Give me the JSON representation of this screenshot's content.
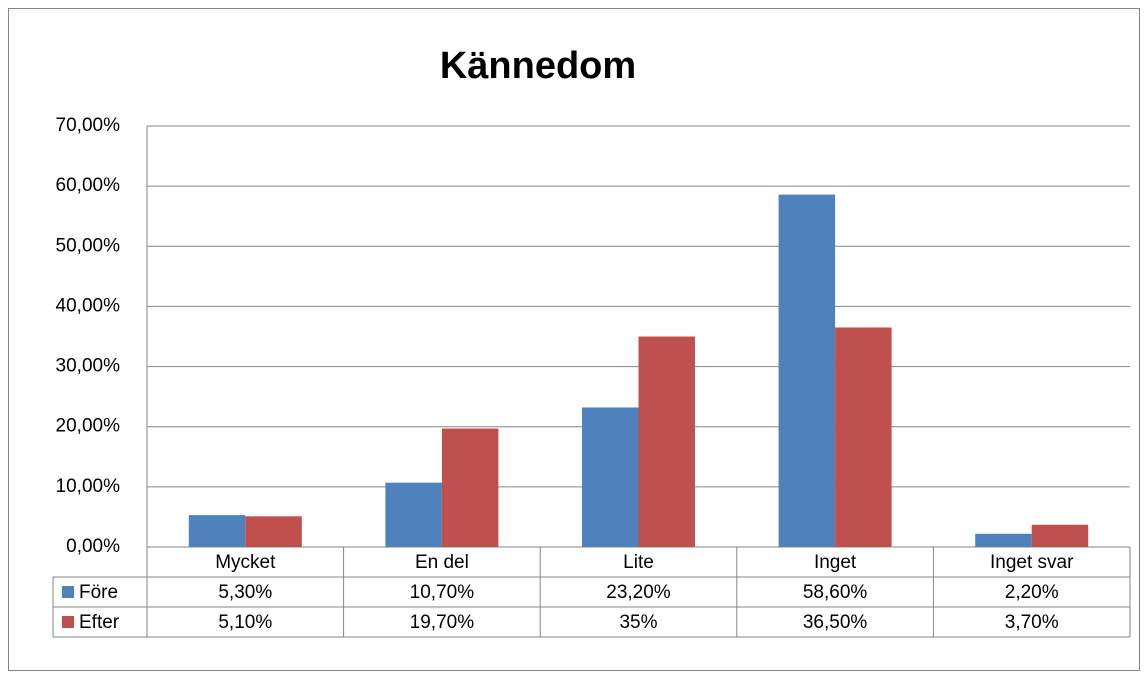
{
  "chart_data": {
    "type": "bar",
    "title": "Kännedom",
    "categories": [
      "Mycket",
      "En del",
      "Lite",
      "Inget",
      "Inget svar"
    ],
    "series": [
      {
        "name": "Före",
        "color": "#4f81bd",
        "values": [
          5.3,
          10.7,
          23.2,
          58.6,
          2.2
        ],
        "value_labels": [
          "5,30%",
          "10,70%",
          "23,20%",
          "58,60%",
          "2,20%"
        ]
      },
      {
        "name": "Efter",
        "color": "#c0504d",
        "values": [
          5.1,
          19.7,
          35,
          36.5,
          3.7
        ],
        "value_labels": [
          "5,10%",
          "19,70%",
          "35%",
          "36,50%",
          "3,70%"
        ]
      }
    ],
    "ylim": [
      0,
      70
    ],
    "yticks": [
      {
        "value": 0,
        "label": "0,00%"
      },
      {
        "value": 10,
        "label": "10,00%"
      },
      {
        "value": 20,
        "label": "20,00%"
      },
      {
        "value": 30,
        "label": "30,00%"
      },
      {
        "value": 40,
        "label": "40,00%"
      },
      {
        "value": 50,
        "label": "50,00%"
      },
      {
        "value": 60,
        "label": "60,00%"
      },
      {
        "value": 70,
        "label": "70,00%"
      }
    ],
    "grid": true
  }
}
